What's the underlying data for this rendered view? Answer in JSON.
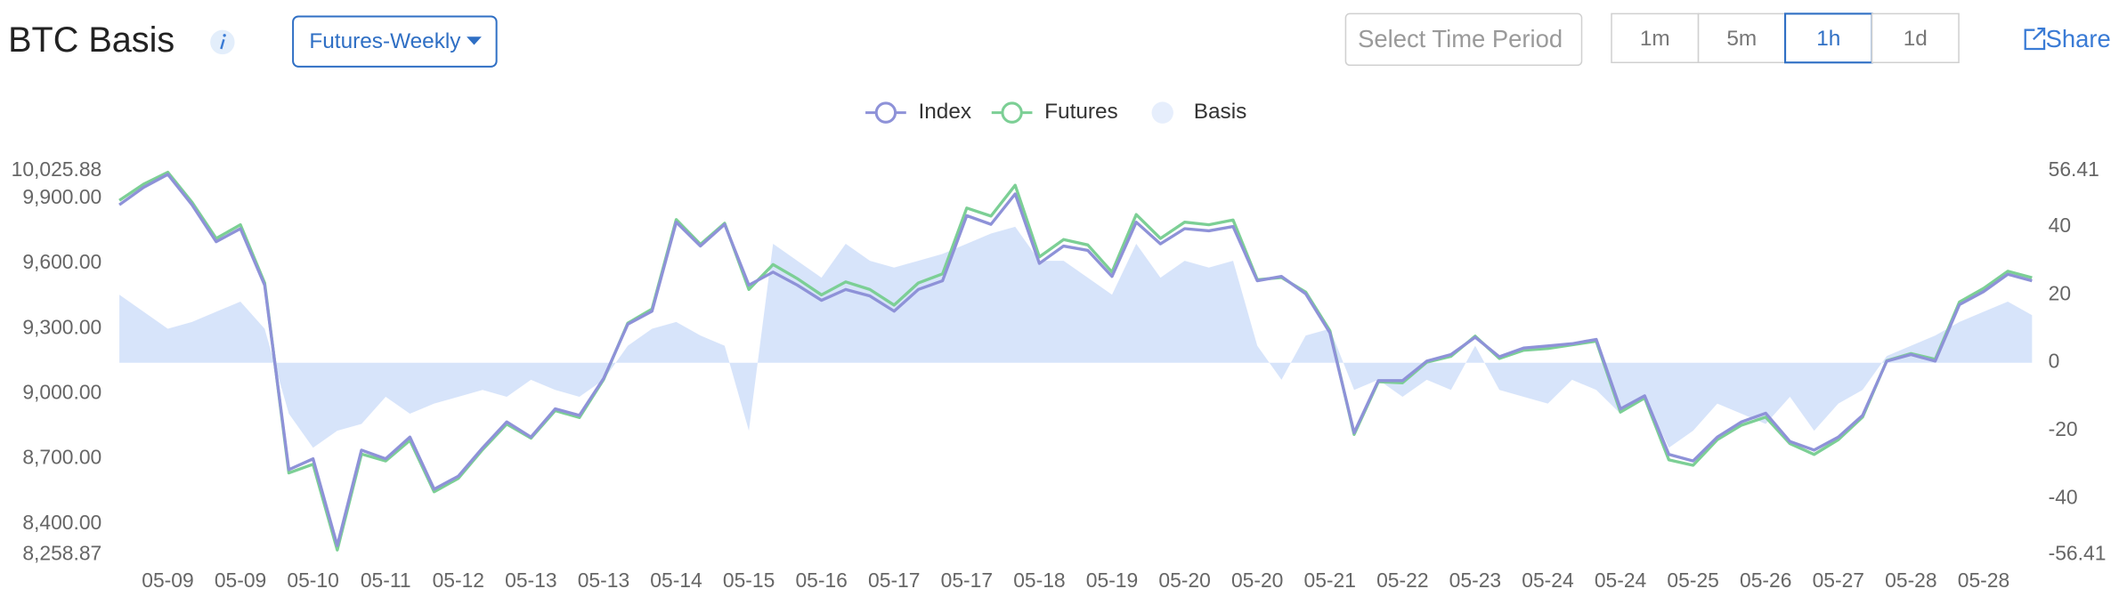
{
  "header": {
    "title": "BTC Basis",
    "dropdown": "Futures-Weekly",
    "time_period_placeholder": "Select Time Period",
    "intervals": [
      "1m",
      "5m",
      "1h",
      "1d"
    ],
    "active_interval": 2,
    "share": "Share"
  },
  "chart_data": {
    "type": "line",
    "categories": [
      null,
      null,
      "05-09",
      null,
      null,
      "05-09",
      null,
      null,
      "05-10",
      null,
      null,
      "05-11",
      null,
      null,
      "05-12",
      null,
      null,
      "05-13",
      null,
      null,
      "05-13",
      null,
      null,
      "05-14",
      null,
      null,
      "05-15",
      null,
      null,
      "05-16",
      null,
      null,
      "05-17",
      null,
      null,
      "05-17",
      null,
      null,
      "05-18",
      null,
      null,
      "05-19",
      null,
      null,
      "05-20",
      null,
      null,
      "05-20",
      null,
      null,
      "05-21",
      null,
      null,
      "05-22",
      null,
      null,
      "05-23",
      null,
      null,
      "05-24",
      null,
      null,
      "05-24",
      null,
      null,
      "05-25",
      null,
      null,
      "05-26",
      null,
      null,
      "05-27",
      null,
      null,
      "05-28",
      null,
      null,
      "05-28",
      null,
      null
    ],
    "series": [
      {
        "name": "Index",
        "type": "line",
        "color": "#8e92d8",
        "values": [
          9870,
          9950,
          10010,
          9870,
          9700,
          9760,
          9500,
          8650,
          8700,
          8300,
          8740,
          8700,
          8800,
          8560,
          8620,
          8750,
          8870,
          8800,
          8930,
          8900,
          9070,
          9320,
          9380,
          9790,
          9680,
          9780,
          9500,
          9560,
          9500,
          9430,
          9480,
          9450,
          9380,
          9480,
          9520,
          9820,
          9780,
          9920,
          9600,
          9680,
          9660,
          9540,
          9790,
          9690,
          9760,
          9750,
          9770,
          9520,
          9540,
          9460,
          9280,
          8820,
          9060,
          9060,
          9150,
          9180,
          9260,
          9170,
          9210,
          9220,
          9230,
          9250,
          8930,
          8990,
          8720,
          8690,
          8800,
          8870,
          8910,
          8780,
          8740,
          8800,
          8900,
          9150,
          9180,
          9150,
          9410,
          9470,
          9550,
          9520
        ]
      },
      {
        "name": "Futures",
        "type": "line",
        "color": "#7ccf95",
        "values": [
          9890,
          9965,
          10020,
          9882,
          9715,
          9778,
          9510,
          8635,
          8675,
          8280,
          8722,
          8690,
          8785,
          8548,
          8610,
          8742,
          8860,
          8795,
          8922,
          8890,
          9065,
          9325,
          9390,
          9802,
          9688,
          9785,
          9480,
          9595,
          9530,
          9455,
          9515,
          9480,
          9408,
          9510,
          9552,
          9855,
          9818,
          9960,
          9630,
          9710,
          9685,
          9560,
          9825,
          9715,
          9790,
          9778,
          9800,
          9525,
          9535,
          9468,
          9290,
          8812,
          9055,
          9050,
          9145,
          9172,
          9265,
          9162,
          9200,
          9208,
          9225,
          9242,
          8915,
          8980,
          8695,
          8670,
          8788,
          8855,
          8892,
          8770,
          8720,
          8788,
          8892,
          9152,
          9185,
          9158,
          9422,
          9485,
          9564,
          9534
        ]
      },
      {
        "name": "Basis",
        "type": "area",
        "axis": "y2",
        "color": "#d5e3fa",
        "values": [
          20,
          15,
          10,
          12,
          15,
          18,
          10,
          -15,
          -25,
          -20,
          -18,
          -10,
          -15,
          -12,
          -10,
          -8,
          -10,
          -5,
          -8,
          -10,
          -5,
          5,
          10,
          12,
          8,
          5,
          -20,
          35,
          30,
          25,
          35,
          30,
          28,
          30,
          32,
          35,
          38,
          40,
          30,
          30,
          25,
          20,
          35,
          25,
          30,
          28,
          30,
          5,
          -5,
          8,
          10,
          -8,
          -5,
          -10,
          -5,
          -8,
          5,
          -8,
          -10,
          -12,
          -5,
          -8,
          -15,
          -10,
          -25,
          -20,
          -12,
          -15,
          -18,
          -10,
          -20,
          -12,
          -8,
          2,
          5,
          8,
          12,
          15,
          18,
          14
        ]
      }
    ],
    "ylim": [
      8258.87,
      10025.88
    ],
    "yticks": [
      {
        "value": 8258.87,
        "label": "8,258.87"
      },
      {
        "value": 8400,
        "label": "8,400.00"
      },
      {
        "value": 8700,
        "label": "8,700.00"
      },
      {
        "value": 9000,
        "label": "9,000.00"
      },
      {
        "value": 9300,
        "label": "9,300.00"
      },
      {
        "value": 9600,
        "label": "9,600.00"
      },
      {
        "value": 9900,
        "label": "9,900.00"
      },
      {
        "value": 10025.88,
        "label": "10,025.88"
      }
    ],
    "y2lim": [
      -56.41,
      56.41
    ],
    "y2ticks": [
      -56.41,
      -40,
      -20,
      0,
      20,
      40,
      56.41
    ],
    "grid": false,
    "legend": "top"
  }
}
